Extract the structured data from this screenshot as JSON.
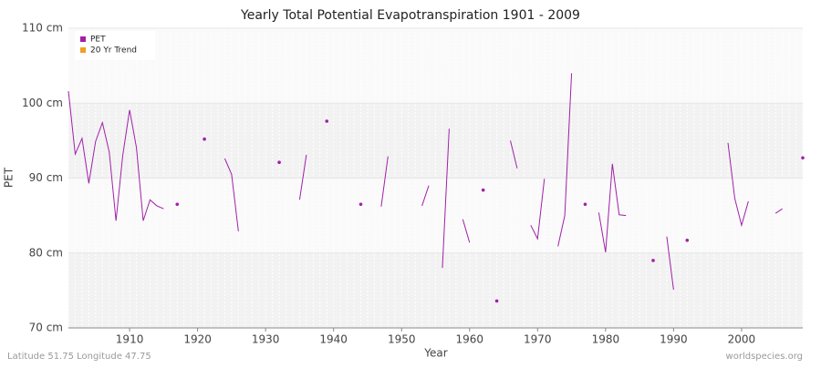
{
  "chart_data": {
    "type": "line",
    "title": "Yearly Total Potential Evapotranspiration 1901 - 2009",
    "x_label": "Year",
    "y_label": "PET",
    "footer_left": "Latitude 51.75 Longitude 47.75",
    "footer_right": "worldspecies.org",
    "x": [
      1901,
      1902,
      1903,
      1904,
      1905,
      1906,
      1907,
      1908,
      1909,
      1910,
      1911,
      1912,
      1913,
      1914,
      1915,
      1916,
      1917,
      1918,
      1919,
      1920,
      1921,
      1922,
      1923,
      1924,
      1925,
      1926,
      1927,
      1928,
      1929,
      1930,
      1931,
      1932,
      1933,
      1934,
      1935,
      1936,
      1937,
      1938,
      1939,
      1940,
      1941,
      1942,
      1943,
      1944,
      1945,
      1946,
      1947,
      1948,
      1949,
      1950,
      1951,
      1952,
      1953,
      1954,
      1955,
      1956,
      1957,
      1958,
      1959,
      1960,
      1961,
      1962,
      1963,
      1964,
      1965,
      1966,
      1967,
      1968,
      1969,
      1970,
      1971,
      1972,
      1973,
      1974,
      1975,
      1976,
      1977,
      1978,
      1979,
      1980,
      1981,
      1982,
      1983,
      1984,
      1985,
      1986,
      1987,
      1988,
      1989,
      1990,
      1991,
      1992,
      1993,
      1994,
      1995,
      1996,
      1997,
      1998,
      1999,
      2000,
      2001,
      2002,
      2003,
      2004,
      2005,
      2006,
      2007,
      2008,
      2009
    ],
    "series": [
      {
        "name": "PET",
        "color": "#a020a8",
        "values": [
          101.6,
          93.2,
          95.3,
          89.3,
          94.9,
          97.4,
          93.5,
          84.3,
          93.1,
          99.1,
          94.1,
          84.3,
          87.1,
          86.3,
          85.9,
          null,
          86.5,
          null,
          null,
          null,
          95.2,
          null,
          null,
          92.6,
          90.5,
          82.9,
          null,
          null,
          null,
          null,
          null,
          92.1,
          null,
          null,
          87.1,
          93.1,
          null,
          null,
          97.6,
          null,
          null,
          null,
          null,
          86.5,
          null,
          null,
          86.2,
          92.9,
          null,
          null,
          null,
          null,
          86.3,
          89.0,
          null,
          78.0,
          96.6,
          null,
          84.5,
          81.4,
          null,
          88.4,
          null,
          73.6,
          null,
          95.0,
          91.3,
          null,
          83.7,
          81.9,
          89.9,
          null,
          80.9,
          85.0,
          104.0,
          null,
          86.5,
          null,
          85.4,
          80.1,
          91.9,
          85.1,
          85.0,
          null,
          null,
          null,
          79.0,
          null,
          82.2,
          75.1,
          null,
          81.7,
          null,
          null,
          null,
          null,
          null,
          94.7,
          87.3,
          83.7,
          86.9,
          null,
          null,
          null,
          85.3,
          85.9,
          null,
          null,
          92.7
        ]
      },
      {
        "name": "20 Yr Trend",
        "color": "#f0a020",
        "values": [
          null,
          null,
          null,
          null,
          null,
          null,
          null,
          null,
          null,
          null,
          null,
          null,
          null,
          null,
          null,
          null,
          null,
          null,
          null,
          null,
          null,
          null,
          null,
          null,
          null,
          null,
          null,
          null,
          null,
          null,
          null,
          null,
          null,
          null,
          null,
          null,
          null,
          null,
          null,
          null,
          null,
          null,
          null,
          null,
          null,
          null,
          null,
          null,
          null,
          null,
          null,
          null,
          null,
          null,
          null,
          null,
          null,
          null,
          null,
          null,
          null,
          null,
          null,
          null,
          null,
          null,
          null,
          null,
          null,
          null,
          null,
          null,
          null,
          null,
          null,
          null,
          null,
          null,
          null,
          null,
          null,
          null,
          null,
          null,
          null,
          null,
          null,
          null,
          null,
          null,
          null,
          null,
          null,
          null,
          null,
          null,
          null,
          null,
          null,
          null,
          null,
          null,
          null,
          null,
          null,
          null,
          null,
          null,
          null
        ]
      }
    ],
    "xlim": [
      1901,
      2009
    ],
    "xticks": [
      1910,
      1920,
      1930,
      1940,
      1950,
      1960,
      1970,
      1980,
      1990,
      2000
    ],
    "ylim": [
      70,
      110
    ],
    "yticks": [
      {
        "value": 70,
        "label": "70 cm"
      },
      {
        "value": 80,
        "label": "80 cm"
      },
      {
        "value": 90,
        "label": "90 cm"
      },
      {
        "value": 100,
        "label": "100 cm"
      },
      {
        "value": 110,
        "label": "110 cm"
      }
    ],
    "grid": true,
    "legend": "top-left"
  }
}
